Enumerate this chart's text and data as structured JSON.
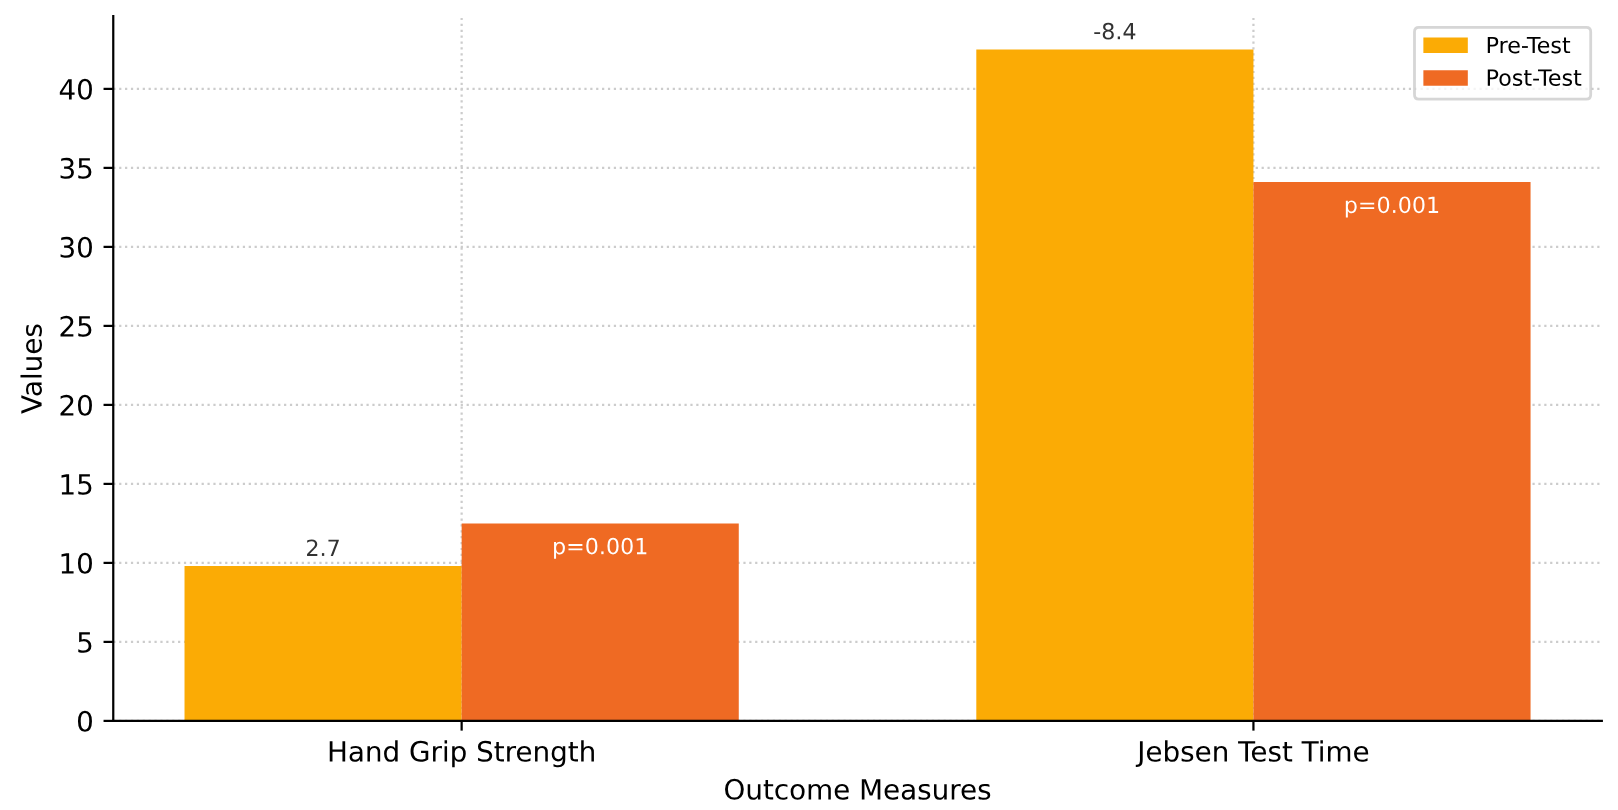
{
  "chart_data": {
    "type": "bar",
    "xlabel": "Outcome Measures",
    "ylabel": "Values",
    "categories": [
      "Hand Grip Strength",
      "Jebsen Test Time"
    ],
    "series": [
      {
        "name": "Pre-Test",
        "color": "#fbab05",
        "values": [
          9.8,
          42.5
        ]
      },
      {
        "name": "Post-Test",
        "color": "#ef6a23",
        "values": [
          12.5,
          34.1
        ]
      }
    ],
    "ylim": [
      0,
      44.6
    ],
    "yticks": [
      0,
      5,
      10,
      15,
      20,
      25,
      30,
      35,
      40
    ],
    "annotations": [
      "2.7",
      "p=0.001",
      "-8.4",
      "p=0.001"
    ],
    "grid": true,
    "legend": "top right"
  }
}
